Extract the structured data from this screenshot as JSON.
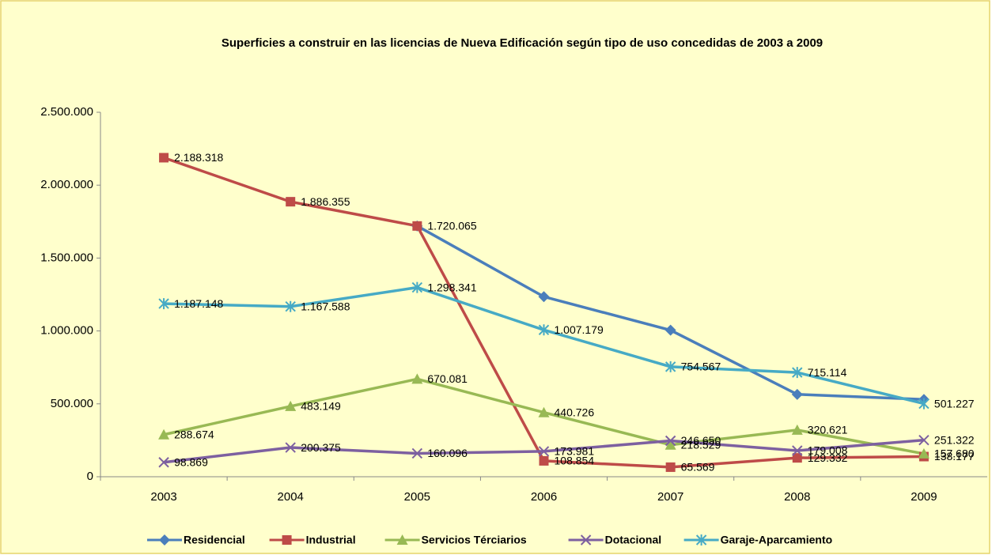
{
  "chart_data": {
    "type": "line",
    "title": "Superficies a construir en las licencias de Nueva Edificación según tipo de uso concedidas de 2003 a 2009",
    "categories": [
      "2003",
      "2004",
      "2005",
      "2006",
      "2007",
      "2008",
      "2009"
    ],
    "ylim": [
      0,
      2500000
    ],
    "yticks": [
      0,
      {
        "value": 500000,
        "label": "500.000"
      },
      {
        "value": 1000000,
        "label": "1.000.000"
      },
      {
        "value": 1500000,
        "label": "1.500.000"
      },
      {
        "value": 2000000,
        "label": "2.000.000"
      },
      {
        "value": 2500000,
        "label": "2.500.000"
      }
    ],
    "grid": false,
    "legend": "bottom",
    "series": [
      {
        "name": "Residencial",
        "color": "#4a7ebb",
        "marker": "diamond",
        "values": [
          null,
          null,
          1720065,
          1235000,
          1005000,
          565000,
          530000
        ]
      },
      {
        "name": "Industrial",
        "color": "#be4b48",
        "marker": "square",
        "values": [
          2188318,
          1886355,
          1720065,
          108854,
          65569,
          129332,
          138177
        ],
        "value_labels": [
          "2.188.318",
          "1.886.355",
          "1.720.065",
          "108.854",
          "65.569",
          "129.332",
          "138.177"
        ]
      },
      {
        "name": "Servicios Térciarios",
        "color": "#98b954",
        "marker": "triangle",
        "values": [
          288674,
          483149,
          670081,
          440726,
          218529,
          320621,
          157680
        ],
        "value_labels": [
          "288.674",
          "483.149",
          "670.081",
          "440.726",
          "218.529",
          "320.621",
          "157.680"
        ]
      },
      {
        "name": "Dotacional",
        "color": "#7d60a0",
        "marker": "x",
        "values": [
          98869,
          200375,
          160096,
          173981,
          246650,
          179008,
          251322
        ],
        "value_labels": [
          "98.869",
          "200.375",
          "160.096",
          "173.981",
          "246.650",
          "179.008",
          "251.322"
        ]
      },
      {
        "name": "Garaje-Aparcamiento",
        "color": "#46aac5",
        "marker": "star",
        "values": [
          1187148,
          1167588,
          1298341,
          1007179,
          754567,
          715114,
          501227
        ],
        "value_labels": [
          "1.187.148",
          "1.167.588",
          "1.298.341",
          "1.007.179",
          "754.567",
          "715.114",
          "501.227"
        ]
      }
    ]
  }
}
